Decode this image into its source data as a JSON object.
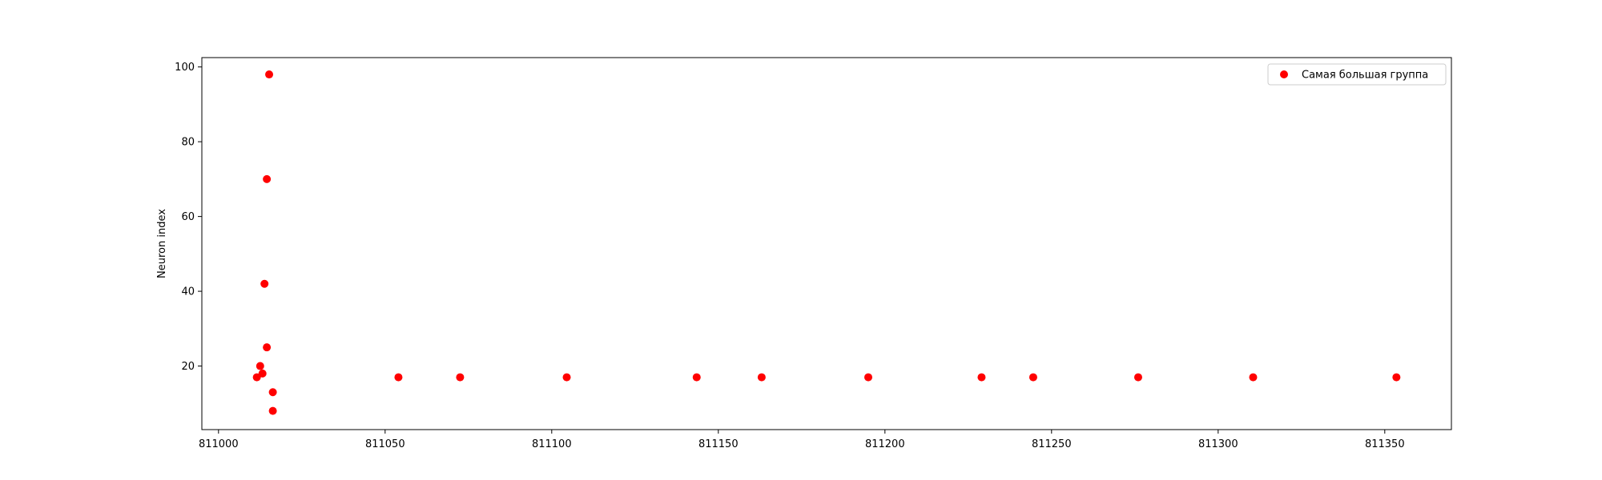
{
  "chart_data": {
    "type": "scatter",
    "title": "",
    "xlabel": "",
    "ylabel": "Neuron index",
    "xlim": [
      810995,
      811370
    ],
    "ylim": [
      3,
      102.5
    ],
    "xticks": [
      811000,
      811050,
      811100,
      811150,
      811200,
      811250,
      811300,
      811350
    ],
    "yticks": [
      20,
      40,
      60,
      80,
      100
    ],
    "grid": false,
    "legend_position": "top-right",
    "series": [
      {
        "name": "Самая большая группа",
        "color": "#ff0000",
        "points": [
          {
            "x": 811011.5,
            "y": 17
          },
          {
            "x": 811012.5,
            "y": 20
          },
          {
            "x": 811013.2,
            "y": 18
          },
          {
            "x": 811013.8,
            "y": 42
          },
          {
            "x": 811014.5,
            "y": 70
          },
          {
            "x": 811014.5,
            "y": 25
          },
          {
            "x": 811015.2,
            "y": 98
          },
          {
            "x": 811016.3,
            "y": 13
          },
          {
            "x": 811016.3,
            "y": 8
          },
          {
            "x": 811054,
            "y": 17
          },
          {
            "x": 811072.5,
            "y": 17
          },
          {
            "x": 811104.5,
            "y": 17
          },
          {
            "x": 811143.5,
            "y": 17
          },
          {
            "x": 811163,
            "y": 17
          },
          {
            "x": 811195,
            "y": 17
          },
          {
            "x": 811229,
            "y": 17
          },
          {
            "x": 811244.5,
            "y": 17
          },
          {
            "x": 811276,
            "y": 17
          },
          {
            "x": 811310.5,
            "y": 17
          },
          {
            "x": 811353.5,
            "y": 17
          }
        ]
      }
    ]
  }
}
